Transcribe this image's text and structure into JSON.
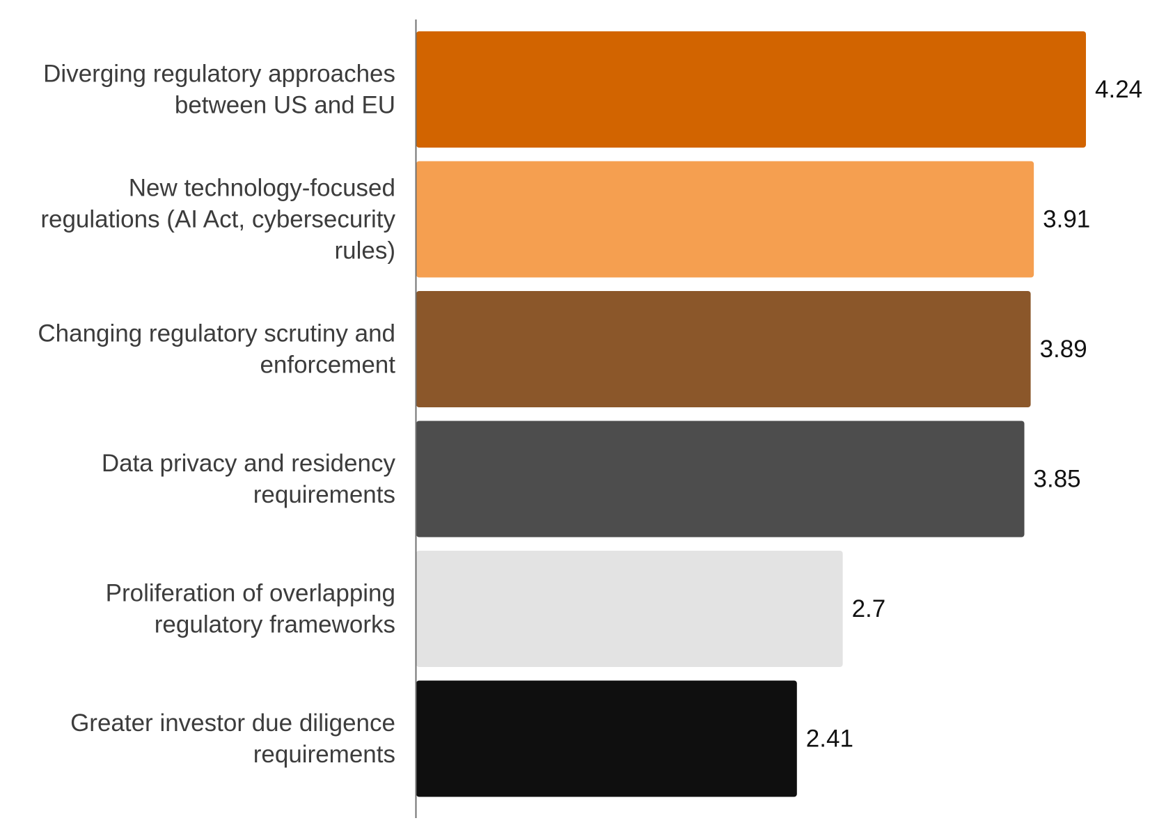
{
  "chart_data": {
    "type": "bar",
    "orientation": "horizontal",
    "categories": [
      "Diverging regulatory approaches between US and EU",
      "New technology-focused regulations (AI Act, cybersecurity rules)",
      "Changing regulatory scrutiny and enforcement",
      "Data privacy and residency requirements",
      "Proliferation of overlapping regulatory frameworks",
      "Greater investor due diligence requirements"
    ],
    "category_lines": [
      [
        "Diverging regulatory approaches",
        "between US and EU"
      ],
      [
        "New technology-focused",
        "regulations (AI Act, cybersecurity",
        "rules)"
      ],
      [
        "Changing regulatory scrutiny and",
        "enforcement"
      ],
      [
        "Data privacy and residency",
        "requirements"
      ],
      [
        "Proliferation of overlapping",
        "regulatory frameworks"
      ],
      [
        "Greater investor due diligence",
        "requirements"
      ]
    ],
    "values": [
      4.24,
      3.91,
      3.89,
      3.85,
      2.7,
      2.41
    ],
    "value_labels": [
      "4.24",
      "3.91",
      "3.89",
      "3.85",
      "2.7",
      "2.41"
    ],
    "colors": [
      "#D26400",
      "#F59F50",
      "#8B572A",
      "#4D4D4D",
      "#E3E3E3",
      "#0F0F0F"
    ],
    "xlim": [
      0,
      4.24
    ],
    "grid": false,
    "legend": "none",
    "title": "",
    "xlabel": "",
    "ylabel": ""
  }
}
